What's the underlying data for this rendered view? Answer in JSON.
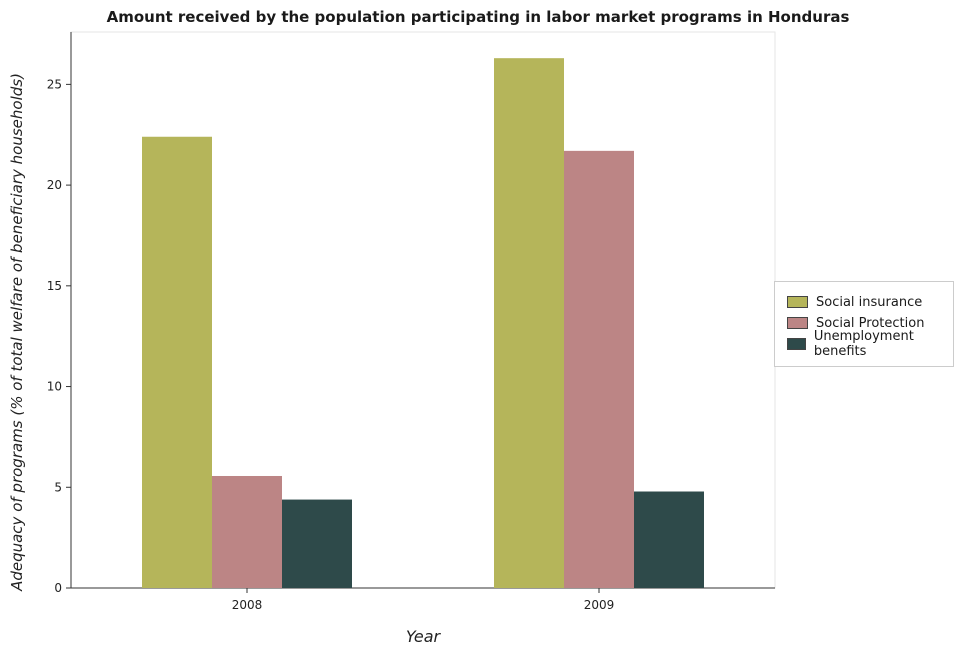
{
  "chart_data": {
    "type": "bar",
    "title": "Amount received by the population participating in labor market programs in Honduras",
    "xlabel": "Year",
    "ylabel": "Adequacy of programs (% of total welfare of beneficiary households)",
    "categories": [
      "2008",
      "2009"
    ],
    "series": [
      {
        "name": "Social insurance",
        "color": "#b5b55a",
        "values": [
          22.4,
          26.3
        ]
      },
      {
        "name": "Social Protection",
        "color": "#bc8585",
        "values": [
          5.56,
          21.7
        ]
      },
      {
        "name": "Unemployment benefits",
        "color": "#2e4a4a",
        "values": [
          4.39,
          4.79
        ]
      }
    ],
    "ylim": [
      0,
      27.6
    ],
    "yticks": [
      "0",
      "5",
      "10",
      "15",
      "20",
      "25"
    ],
    "legend_position": "right",
    "grid": false
  }
}
